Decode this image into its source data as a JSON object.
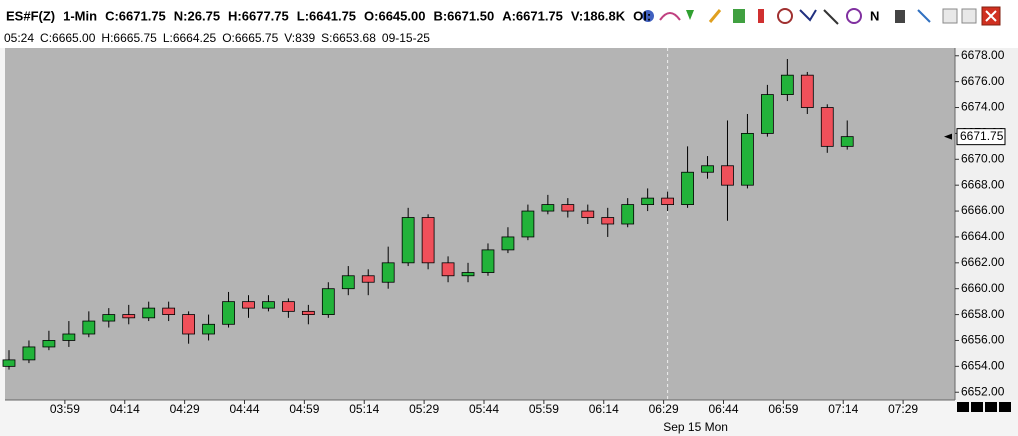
{
  "toolbar": {
    "items": [
      "ES#F(Z)",
      "1-Min",
      "C:6671.75",
      "N:26.75",
      "H:6677.75",
      "L:6641.75",
      "O:6645.00",
      "B:6671.50",
      "A:6671.75",
      "V:186.8K",
      "OI:"
    ]
  },
  "status_bar": {
    "items": [
      "05:24",
      "C:6665.00",
      "H:6665.75",
      "L:6664.25",
      "O:6665.75",
      "V:839",
      "S:6653.68",
      "09-15-25"
    ]
  },
  "chart_data": {
    "type": "candlestick",
    "x": [
      "03:45",
      "03:50",
      "03:55",
      "04:00",
      "04:05",
      "04:10",
      "04:15",
      "04:20",
      "04:25",
      "04:30",
      "04:35",
      "04:40",
      "04:45",
      "04:50",
      "04:55",
      "05:00",
      "05:05",
      "05:10",
      "05:15",
      "05:20",
      "05:25",
      "05:30",
      "05:35",
      "05:40",
      "05:45",
      "05:50",
      "05:55",
      "06:00",
      "06:05",
      "06:10",
      "06:15",
      "06:20",
      "06:25",
      "06:30",
      "06:35",
      "06:40",
      "06:45",
      "06:50",
      "06:55",
      "07:00",
      "07:05",
      "07:10",
      "07:15"
    ],
    "open": [
      6654,
      6654.5,
      6655.5,
      6656,
      6656.5,
      6657.5,
      6658,
      6657.75,
      6658.5,
      6658,
      6656.5,
      6657.25,
      6659,
      6658.5,
      6659,
      6658.25,
      6658,
      6660,
      6661,
      6660.5,
      6662,
      6665.5,
      6662,
      6661,
      6661.25,
      6663,
      6664,
      6666,
      6666.5,
      6666,
      6665.5,
      6665,
      6666.5,
      6667,
      6666.5,
      6669,
      6669.5,
      6668,
      6672,
      6675,
      6676.5,
      6674,
      6671
    ],
    "high": [
      6655.25,
      6656,
      6656.75,
      6657.5,
      6658.25,
      6658.5,
      6658.75,
      6659,
      6659,
      6658.25,
      6658,
      6659.75,
      6659.5,
      6659.5,
      6659.25,
      6658.75,
      6660.5,
      6661.75,
      6661.5,
      6663.25,
      6666.25,
      6665.75,
      6662.5,
      6662,
      6663.5,
      6664.75,
      6666.5,
      6667.25,
      6667,
      6666.5,
      6666.25,
      6667,
      6667.75,
      6667.5,
      6671,
      6670.25,
      6673,
      6673.5,
      6675.75,
      6677.75,
      6676.75,
      6674.25,
      6673
    ],
    "low": [
      6653.75,
      6654.25,
      6655.25,
      6655.5,
      6656.25,
      6657,
      6657.25,
      6657.5,
      6657.5,
      6655.75,
      6656,
      6657,
      6657.75,
      6658.25,
      6657.75,
      6657.25,
      6657.75,
      6659.5,
      6659.5,
      6660,
      6661.75,
      6661.5,
      6660.5,
      6660.5,
      6661,
      6662.75,
      6663.75,
      6665.75,
      6665.5,
      6665,
      6664,
      6664.75,
      6666,
      6666,
      6666.25,
      6668.5,
      6665.25,
      6667.75,
      6671.75,
      6674.5,
      6673.5,
      6670.5,
      6670.75
    ],
    "close": [
      6654.5,
      6655.5,
      6656,
      6656.5,
      6657.5,
      6658,
      6657.75,
      6658.5,
      6658,
      6656.5,
      6657.25,
      6659,
      6658.5,
      6659,
      6658.25,
      6658,
      6660,
      6661,
      6660.5,
      6662,
      6665.5,
      6662,
      6661,
      6661.25,
      6663,
      6664,
      6666,
      6666.5,
      6666,
      6665.5,
      6665,
      6666.5,
      6667,
      6666.5,
      6669,
      6669.5,
      6668,
      6672,
      6675,
      6676.5,
      6674,
      6671,
      6671.75
    ],
    "up_color": "#22b33a",
    "down_color": "#f0505a",
    "xlim": [
      "03:44",
      "07:42"
    ],
    "xticks": [
      "03:59",
      "04:14",
      "04:29",
      "04:44",
      "04:59",
      "05:14",
      "05:29",
      "05:44",
      "05:59",
      "06:14",
      "06:29",
      "06:44",
      "06:59",
      "07:14",
      "07:29"
    ],
    "ylim": [
      6651.4,
      6678.6
    ],
    "yticks": [
      {
        "value": 6652,
        "label": "6652.00"
      },
      {
        "value": 6654,
        "label": "6654.00"
      },
      {
        "value": 6656,
        "label": "6656.00"
      },
      {
        "value": 6658,
        "label": "6658.00"
      },
      {
        "value": 6660,
        "label": "6660.00"
      },
      {
        "value": 6662,
        "label": "6662.00"
      },
      {
        "value": 6664,
        "label": "6664.00"
      },
      {
        "value": 6666,
        "label": "6666.00"
      },
      {
        "value": 6668,
        "label": "6668.00"
      },
      {
        "value": 6670,
        "label": "6670.00"
      },
      {
        "value": 6672,
        "label": "6672.00"
      },
      {
        "value": 6674,
        "label": "6674.00"
      },
      {
        "value": 6676,
        "label": "6676.00"
      },
      {
        "value": 6678,
        "label": "6678.00"
      }
    ],
    "last_price": 6671.75,
    "date_marker": {
      "label": "Sep 15 Mon",
      "x": "06:30"
    }
  }
}
